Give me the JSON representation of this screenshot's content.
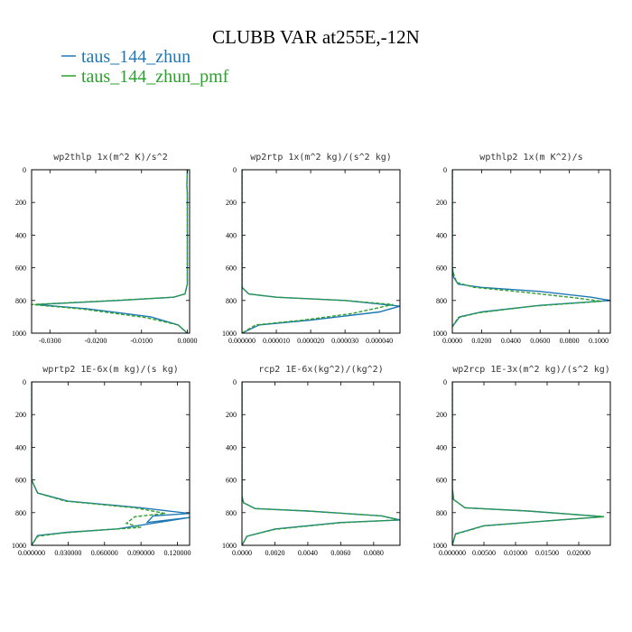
{
  "figure": {
    "title": "CLUBB VAR at255E,-12N",
    "legend": [
      {
        "label": "taus_144_zhun",
        "color": "#1f77b4",
        "dash": "solid"
      },
      {
        "label": "taus_144_zhun_pmf",
        "color": "#2ca02c",
        "dash": "dashed"
      }
    ]
  },
  "chart_data": [
    {
      "type": "line",
      "title": "wp2thlp  1x(m^2 K)/s^2",
      "xlim": [
        -0.034,
        0.0005
      ],
      "xticks": [
        -0.03,
        -0.02,
        -0.01,
        0.0
      ],
      "xtick_labels": [
        "-0.0300",
        "-0.0200",
        "-0.0100",
        "0.0000"
      ],
      "ylim": [
        0,
        1000
      ],
      "yticks": [
        0,
        200,
        400,
        600,
        800,
        1000
      ],
      "y_inverted": true,
      "series": [
        {
          "name": "taus_144_zhun",
          "x": [
            0.0,
            -0.0001,
            0.0,
            0.0,
            0.0,
            -0.0005,
            -0.003,
            -0.015,
            -0.033,
            -0.022,
            -0.008,
            -0.002,
            0.0
          ],
          "y": [
            0,
            100,
            140,
            400,
            700,
            760,
            780,
            800,
            825,
            850,
            900,
            950,
            1000
          ]
        },
        {
          "name": "taus_144_zhun_pmf",
          "x": [
            0.0,
            -0.0001,
            0.0,
            0.0,
            0.0,
            -0.0005,
            -0.003,
            -0.016,
            -0.034,
            -0.023,
            -0.009,
            -0.002,
            0.0
          ],
          "y": [
            0,
            100,
            140,
            400,
            700,
            760,
            780,
            800,
            825,
            852,
            905,
            950,
            1000
          ]
        }
      ]
    },
    {
      "type": "line",
      "title": "wp2rtp  1x(m^2 kg)/(s^2 kg)",
      "xlim": [
        0.0,
        4.6e-05
      ],
      "xticks": [
        0.0,
        1e-05,
        2e-05,
        3e-05,
        4e-05
      ],
      "xtick_labels": [
        "0.000000",
        "0.000010",
        "0.000020",
        "0.000030",
        "0.000040"
      ],
      "ylim": [
        0,
        1000
      ],
      "yticks": [
        0,
        200,
        400,
        600,
        800,
        1000
      ],
      "y_inverted": true,
      "series": [
        {
          "name": "taus_144_zhun",
          "x": [
            0.0,
            0.0,
            0.0,
            2e-06,
            1e-05,
            3e-05,
            4.6e-05,
            4e-05,
            2e-05,
            5e-06,
            0.0
          ],
          "y": [
            0,
            400,
            720,
            760,
            780,
            800,
            835,
            870,
            920,
            950,
            1000
          ]
        },
        {
          "name": "taus_144_zhun_pmf",
          "x": [
            0.0,
            0.0,
            0.0,
            2e-06,
            1e-05,
            3e-05,
            4.4e-05,
            3.2e-05,
            1.8e-05,
            4e-06,
            0.0
          ],
          "y": [
            0,
            400,
            720,
            760,
            780,
            800,
            825,
            880,
            920,
            950,
            1000
          ]
        }
      ]
    },
    {
      "type": "line",
      "title": "wpthlp2  1x(m K^2)/s",
      "xlim": [
        0.0,
        0.108
      ],
      "xticks": [
        0.0,
        0.02,
        0.04,
        0.06,
        0.08,
        0.1
      ],
      "xtick_labels": [
        "0.0000",
        "0.0200",
        "0.0400",
        "0.0600",
        "0.0800",
        "0.1000"
      ],
      "ylim": [
        0,
        1000
      ],
      "yticks": [
        0,
        200,
        400,
        600,
        800,
        1000
      ],
      "y_inverted": true,
      "series": [
        {
          "name": "taus_144_zhun",
          "x": [
            0.0,
            0.0,
            0.001,
            0.004,
            0.02,
            0.06,
            0.095,
            0.108,
            0.06,
            0.02,
            0.005,
            0.0
          ],
          "y": [
            0,
            600,
            660,
            700,
            720,
            745,
            780,
            800,
            830,
            870,
            900,
            960
          ]
        },
        {
          "name": "taus_144_zhun_pmf",
          "x": [
            0.0,
            0.0,
            0.001,
            0.003,
            0.015,
            0.05,
            0.085,
            0.102,
            0.055,
            0.018,
            0.004,
            0.0
          ],
          "y": [
            0,
            600,
            640,
            690,
            720,
            750,
            785,
            805,
            835,
            875,
            905,
            960
          ]
        }
      ]
    },
    {
      "type": "line",
      "title": "wprtp2  1E-6x(m kg)/(s kg)",
      "xlim": [
        0.0,
        0.13
      ],
      "xticks": [
        0.0,
        0.03,
        0.06,
        0.09,
        0.12
      ],
      "xtick_labels": [
        "0.000000",
        "0.030000",
        "0.060000",
        "0.090000",
        "0.120000"
      ],
      "ylim": [
        0,
        1000
      ],
      "yticks": [
        0,
        200,
        400,
        600,
        800,
        1000
      ],
      "y_inverted": true,
      "series": [
        {
          "name": "taus_144_zhun",
          "x": [
            0.0,
            0.0,
            0.005,
            0.03,
            0.09,
            0.13,
            0.1,
            0.095,
            0.13,
            0.07,
            0.03,
            0.005,
            0.0
          ],
          "y": [
            0,
            600,
            680,
            730,
            770,
            805,
            820,
            860,
            830,
            900,
            920,
            940,
            1000
          ]
        },
        {
          "name": "taus_144_zhun_pmf",
          "x": [
            0.0,
            0.0,
            0.005,
            0.028,
            0.085,
            0.11,
            0.085,
            0.078,
            0.09,
            0.06,
            0.025,
            0.005,
            0.0
          ],
          "y": [
            0,
            600,
            680,
            730,
            770,
            805,
            825,
            865,
            890,
            905,
            925,
            945,
            1000
          ]
        }
      ]
    },
    {
      "type": "line",
      "title": "rcp2  1E-6x(kg^2)/(kg^2)",
      "xlim": [
        0.0,
        0.0096
      ],
      "xticks": [
        0.0,
        0.002,
        0.004,
        0.006,
        0.008
      ],
      "xtick_labels": [
        "0.0000",
        "0.0020",
        "0.0040",
        "0.0060",
        "0.0080"
      ],
      "ylim": [
        0,
        1000
      ],
      "yticks": [
        0,
        200,
        400,
        600,
        800,
        1000
      ],
      "y_inverted": true,
      "series": [
        {
          "name": "taus_144_zhun",
          "x": [
            0.0,
            0.0,
            0.0001,
            0.0008,
            0.004,
            0.0085,
            0.0096,
            0.006,
            0.002,
            0.0003,
            0.0
          ],
          "y": [
            0,
            700,
            740,
            775,
            790,
            820,
            845,
            860,
            900,
            945,
            1000
          ]
        },
        {
          "name": "taus_144_zhun_pmf",
          "x": [
            0.0,
            0.0,
            0.0001,
            0.0008,
            0.004,
            0.0085,
            0.0095,
            0.006,
            0.002,
            0.0003,
            0.0
          ],
          "y": [
            0,
            700,
            740,
            775,
            790,
            820,
            845,
            862,
            902,
            945,
            1000
          ]
        }
      ]
    },
    {
      "type": "line",
      "title": "wp2rcp  1E-3x(m^2 kg)/(s^2 kg)",
      "xlim": [
        0.0,
        0.025
      ],
      "xticks": [
        0.0,
        0.005,
        0.01,
        0.015,
        0.02
      ],
      "xtick_labels": [
        "0.000000",
        "0.00500",
        "0.01000",
        "0.01500",
        "0.02000"
      ],
      "ylim": [
        0,
        1000
      ],
      "yticks": [
        0,
        200,
        400,
        600,
        800,
        1000
      ],
      "y_inverted": true,
      "series": [
        {
          "name": "taus_144_zhun",
          "x": [
            0.0,
            0.0,
            0.0002,
            0.002,
            0.012,
            0.024,
            0.015,
            0.005,
            0.0005,
            0.0
          ],
          "y": [
            0,
            650,
            720,
            770,
            790,
            825,
            850,
            880,
            930,
            1000
          ]
        },
        {
          "name": "taus_144_zhun_pmf",
          "x": [
            0.0,
            0.0,
            0.0002,
            0.002,
            0.012,
            0.024,
            0.015,
            0.005,
            0.0005,
            0.0
          ],
          "y": [
            0,
            650,
            720,
            770,
            790,
            825,
            851,
            881,
            932,
            1000
          ]
        }
      ]
    }
  ]
}
